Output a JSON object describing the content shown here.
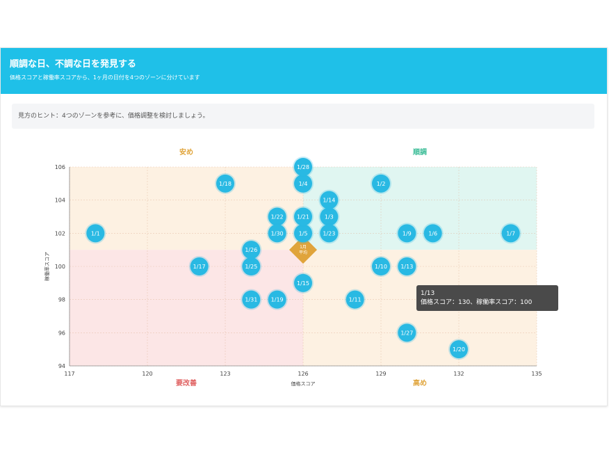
{
  "header": {
    "title": "順調な日、不調な日を発見する",
    "subtitle": "価格スコアと稼働率スコアから、1ヶ月の日付を4つのゾーンに分けています"
  },
  "hint": "見方のヒント：4つのゾーンを参考に、価格調整を検討しましょう。",
  "tooltip": {
    "date": "1/13",
    "text": "価格スコア：130、稼働率スコア：100"
  },
  "colors": {
    "accent": "#1fc0e8",
    "bubble": "#29b9e3",
    "zone_top_left": "#fdf1e2",
    "zone_top_right": "#e0f6f1",
    "zone_bottom_left": "#fce6e6",
    "zone_bottom_right": "#fdf1e2",
    "average_marker": "#e0a43b"
  },
  "chart_data": {
    "type": "scatter",
    "xlabel": "価格スコア",
    "ylabel": "稼働率スコア",
    "xlim": [
      117,
      135
    ],
    "ylim": [
      94,
      106
    ],
    "xticks": [
      117,
      120,
      123,
      126,
      129,
      132,
      135
    ],
    "yticks": [
      94,
      96,
      98,
      100,
      102,
      104,
      106
    ],
    "grid": true,
    "zones": {
      "x_split": 126,
      "y_split": 101,
      "labels": {
        "top_left": "安め",
        "top_right": "順調",
        "bottom_left": "要改善",
        "bottom_right": "高め"
      },
      "label_colors": {
        "top_left": "#e0a43b",
        "top_right": "#3dbd98",
        "bottom_left": "#e06363",
        "bottom_right": "#e0a43b"
      }
    },
    "average": {
      "label": "1月\n平均",
      "x": 126,
      "y": 101
    },
    "points": [
      {
        "label": "1/1",
        "x": 118,
        "y": 102
      },
      {
        "label": "1/2",
        "x": 129,
        "y": 105
      },
      {
        "label": "1/3",
        "x": 127,
        "y": 103
      },
      {
        "label": "1/4",
        "x": 126,
        "y": 105
      },
      {
        "label": "1/5",
        "x": 126,
        "y": 102
      },
      {
        "label": "1/6",
        "x": 131,
        "y": 102
      },
      {
        "label": "1/7",
        "x": 134,
        "y": 102
      },
      {
        "label": "1/9",
        "x": 130,
        "y": 102
      },
      {
        "label": "1/10",
        "x": 129,
        "y": 100
      },
      {
        "label": "1/11",
        "x": 128,
        "y": 98
      },
      {
        "label": "1/13",
        "x": 130,
        "y": 100
      },
      {
        "label": "1/14",
        "x": 127,
        "y": 104
      },
      {
        "label": "1/15",
        "x": 126,
        "y": 99
      },
      {
        "label": "1/17",
        "x": 122,
        "y": 100
      },
      {
        "label": "1/18",
        "x": 123,
        "y": 105
      },
      {
        "label": "1/19",
        "x": 125,
        "y": 98
      },
      {
        "label": "1/20",
        "x": 132,
        "y": 95
      },
      {
        "label": "1/21",
        "x": 126,
        "y": 103
      },
      {
        "label": "1/22",
        "x": 125,
        "y": 103
      },
      {
        "label": "1/23",
        "x": 127,
        "y": 102
      },
      {
        "label": "1/25",
        "x": 124,
        "y": 100
      },
      {
        "label": "1/26",
        "x": 124,
        "y": 101
      },
      {
        "label": "1/27",
        "x": 130,
        "y": 96
      },
      {
        "label": "1/28",
        "x": 126,
        "y": 106
      },
      {
        "label": "1/30",
        "x": 125,
        "y": 102
      },
      {
        "label": "1/31",
        "x": 124,
        "y": 98
      }
    ]
  }
}
